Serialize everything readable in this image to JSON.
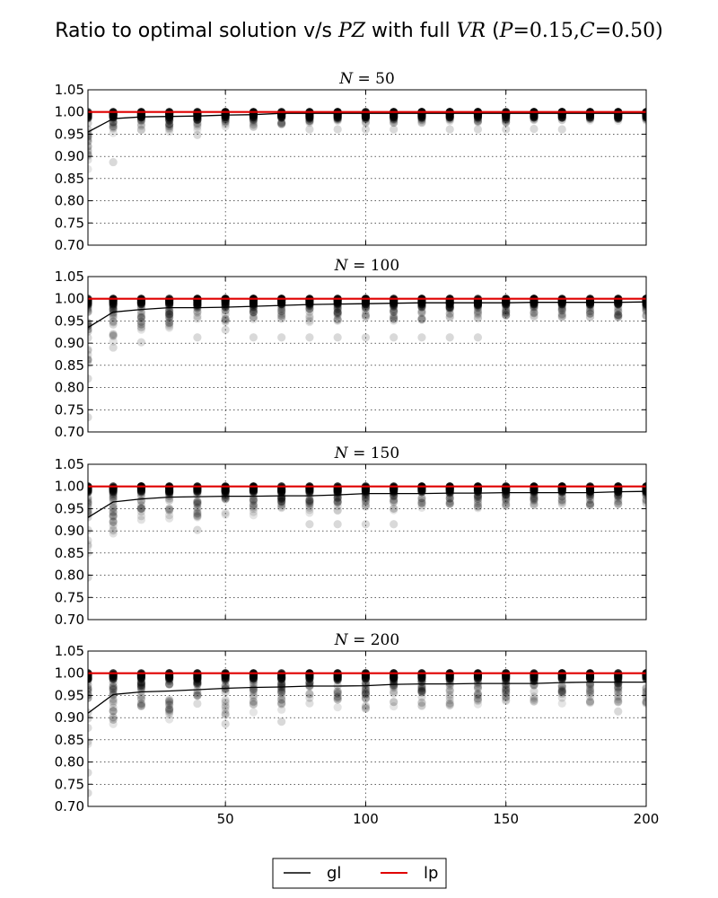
{
  "chart_data": {
    "type": "scatter",
    "title": {
      "t1": "Ratio to optimal solution v/s ",
      "t2": "PZ",
      "t3": " with full ",
      "t4": "VR",
      "t5": " (",
      "t6": "P",
      "t7": "=0.15,",
      "t8": "C",
      "t9": "=0.50)"
    },
    "xlim": [
      1,
      200
    ],
    "ylim": [
      0.7,
      1.05
    ],
    "x_ticks": [
      50,
      100,
      150,
      200
    ],
    "y_ticks": [
      0.7,
      0.75,
      0.8,
      0.85,
      0.9,
      0.95,
      1.0,
      1.05
    ],
    "x": [
      1,
      10,
      20,
      30,
      40,
      50,
      60,
      70,
      80,
      90,
      100,
      110,
      120,
      130,
      140,
      150,
      160,
      170,
      180,
      190,
      200
    ],
    "grid": true,
    "legend": {
      "position": "bottom-center",
      "items": [
        "gl",
        "lp"
      ]
    },
    "colors": {
      "gl": "#000000",
      "lp": "#e00000",
      "points": "#000000"
    },
    "panels": [
      {
        "name": "N",
        "value": "50",
        "gl": [
          0.955,
          0.985,
          0.989,
          0.99,
          0.991,
          0.993,
          0.994,
          0.997,
          0.997,
          0.997,
          0.997,
          0.997,
          0.997,
          0.997,
          0.997,
          0.997,
          0.997,
          0.997,
          0.997,
          0.997,
          0.997
        ],
        "lp": [
          1.0,
          1.0,
          1.0,
          1.0,
          1.0,
          1.0,
          1.0,
          1.0,
          1.0,
          1.0,
          1.0,
          1.0,
          1.0,
          1.0,
          1.0,
          1.0,
          1.0,
          1.0,
          1.0,
          1.0,
          1.0
        ],
        "point_min": [
          0.87,
          0.95,
          0.955,
          0.955,
          0.96,
          0.965,
          0.965,
          0.97,
          0.975,
          0.975,
          0.975,
          0.975,
          0.975,
          0.975,
          0.975,
          0.975,
          0.98,
          0.98,
          0.98,
          0.98,
          0.98
        ],
        "outliers": [
          [
            10,
            0.887
          ],
          [
            40,
            0.948
          ],
          [
            80,
            0.961
          ],
          [
            90,
            0.961
          ],
          [
            100,
            0.961
          ],
          [
            110,
            0.961
          ],
          [
            130,
            0.961
          ],
          [
            140,
            0.961
          ],
          [
            150,
            0.961
          ],
          [
            160,
            0.962
          ],
          [
            170,
            0.961
          ]
        ]
      },
      {
        "name": "N",
        "value": "100",
        "gl": [
          0.935,
          0.97,
          0.976,
          0.98,
          0.98,
          0.981,
          0.983,
          0.985,
          0.987,
          0.988,
          0.989,
          0.99,
          0.991,
          0.991,
          0.991,
          0.991,
          0.992,
          0.992,
          0.992,
          0.992,
          0.993
        ],
        "lp": [
          1.0,
          1.0,
          1.0,
          1.0,
          1.0,
          1.0,
          1.0,
          1.0,
          1.0,
          1.0,
          1.0,
          1.0,
          1.0,
          1.0,
          1.0,
          1.0,
          1.0,
          1.0,
          1.0,
          1.0,
          1.0
        ],
        "point_min": [
          0.85,
          0.9,
          0.925,
          0.93,
          0.935,
          0.94,
          0.94,
          0.945,
          0.945,
          0.945,
          0.95,
          0.95,
          0.95,
          0.95,
          0.95,
          0.955,
          0.955,
          0.955,
          0.955,
          0.955,
          0.955
        ],
        "outliers": [
          [
            1,
            0.733
          ],
          [
            1,
            0.82
          ],
          [
            10,
            0.89
          ],
          [
            20,
            0.902
          ],
          [
            40,
            0.913
          ],
          [
            50,
            0.93
          ],
          [
            60,
            0.913
          ],
          [
            70,
            0.913
          ],
          [
            80,
            0.913
          ],
          [
            90,
            0.913
          ],
          [
            100,
            0.913
          ],
          [
            110,
            0.913
          ],
          [
            120,
            0.913
          ],
          [
            130,
            0.913
          ],
          [
            140,
            0.913
          ]
        ]
      },
      {
        "name": "N",
        "value": "150",
        "gl": [
          0.93,
          0.965,
          0.972,
          0.976,
          0.977,
          0.978,
          0.978,
          0.979,
          0.979,
          0.981,
          0.984,
          0.984,
          0.984,
          0.985,
          0.985,
          0.986,
          0.986,
          0.986,
          0.986,
          0.988,
          0.989
        ],
        "lp": [
          1.0,
          1.0,
          1.0,
          1.0,
          1.0,
          1.0,
          1.0,
          1.0,
          1.0,
          1.0,
          1.0,
          1.0,
          1.0,
          1.0,
          1.0,
          1.0,
          1.0,
          1.0,
          1.0,
          1.0,
          1.0
        ],
        "point_min": [
          0.84,
          0.88,
          0.915,
          0.925,
          0.93,
          0.935,
          0.935,
          0.94,
          0.94,
          0.945,
          0.945,
          0.945,
          0.95,
          0.95,
          0.95,
          0.955,
          0.955,
          0.955,
          0.955,
          0.955,
          0.96
        ],
        "outliers": [
          [
            1,
            0.795
          ],
          [
            40,
            0.902
          ],
          [
            80,
            0.915
          ],
          [
            90,
            0.915
          ],
          [
            100,
            0.915
          ],
          [
            110,
            0.915
          ]
        ]
      },
      {
        "name": "N",
        "value": "200",
        "gl": [
          0.91,
          0.952,
          0.958,
          0.96,
          0.963,
          0.966,
          0.968,
          0.969,
          0.971,
          0.971,
          0.972,
          0.975,
          0.976,
          0.976,
          0.977,
          0.977,
          0.977,
          0.979,
          0.98,
          0.98,
          0.98
        ],
        "lp": [
          1.0,
          1.0,
          1.0,
          1.0,
          1.0,
          1.0,
          1.0,
          1.0,
          1.0,
          1.0,
          1.0,
          1.0,
          1.0,
          1.0,
          1.0,
          1.0,
          1.0,
          1.0,
          1.0,
          1.0,
          1.0
        ],
        "point_min": [
          0.82,
          0.88,
          0.89,
          0.89,
          0.9,
          0.905,
          0.91,
          0.91,
          0.915,
          0.92,
          0.92,
          0.925,
          0.925,
          0.925,
          0.93,
          0.93,
          0.93,
          0.93,
          0.93,
          0.93,
          0.93
        ],
        "outliers": [
          [
            1,
            0.73
          ],
          [
            1,
            0.776
          ],
          [
            50,
            0.886
          ],
          [
            70,
            0.891
          ],
          [
            100,
            0.92
          ],
          [
            190,
            0.914
          ]
        ]
      }
    ]
  }
}
